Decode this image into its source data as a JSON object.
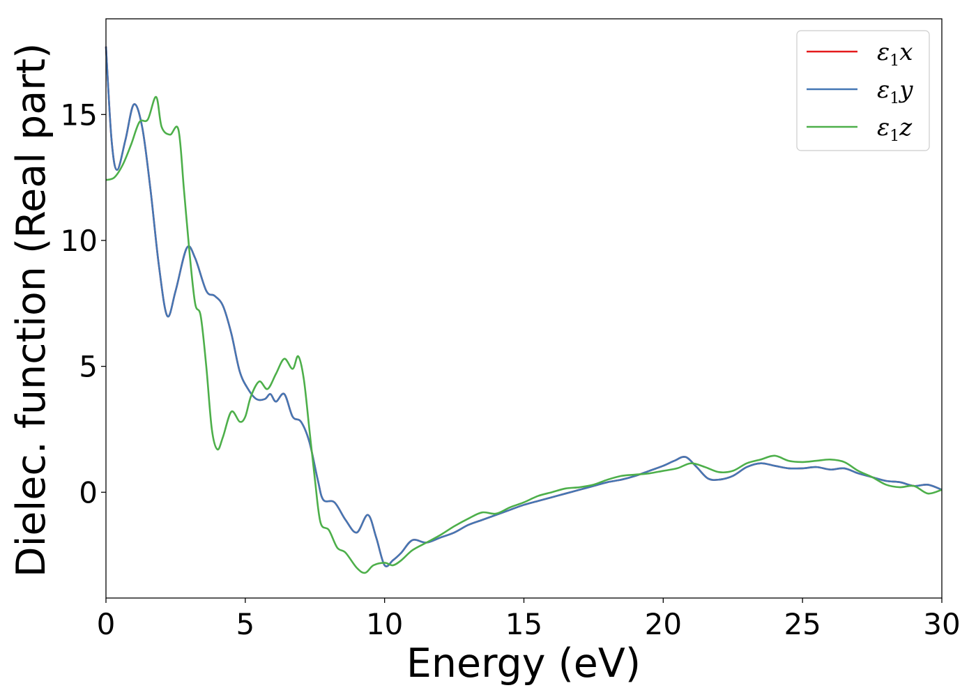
{
  "chart_data": {
    "type": "line",
    "xlabel": "Energy (eV)",
    "ylabel": "Dielec. function (Real part)",
    "xlim": [
      0,
      30
    ],
    "ylim": [
      -4.2,
      18.8
    ],
    "xticks": [
      0,
      5,
      10,
      15,
      20,
      25,
      30
    ],
    "yticks": [
      0,
      5,
      10,
      15
    ],
    "grid": false,
    "legend_position": "top-right",
    "series": [
      {
        "name": "ε1x",
        "legend": {
          "base": "ε",
          "sub": "1",
          "var": "x"
        },
        "color": "#e41a1c",
        "hidden_under": "ε1y",
        "points": [
          [
            0,
            17.7
          ],
          [
            0.2,
            14.0
          ],
          [
            0.4,
            12.8
          ],
          [
            0.7,
            14.0
          ],
          [
            1.0,
            15.4
          ],
          [
            1.3,
            14.5
          ],
          [
            1.6,
            12.0
          ],
          [
            1.9,
            9.0
          ],
          [
            2.2,
            7.0
          ],
          [
            2.5,
            8.0
          ],
          [
            2.9,
            9.7
          ],
          [
            3.2,
            9.3
          ],
          [
            3.6,
            8.0
          ],
          [
            3.9,
            7.8
          ],
          [
            4.2,
            7.4
          ],
          [
            4.5,
            6.3
          ],
          [
            4.8,
            4.8
          ],
          [
            5.1,
            4.1
          ],
          [
            5.4,
            3.7
          ],
          [
            5.7,
            3.7
          ],
          [
            5.9,
            3.9
          ],
          [
            6.1,
            3.6
          ],
          [
            6.4,
            3.9
          ],
          [
            6.7,
            3.0
          ],
          [
            7.0,
            2.8
          ],
          [
            7.3,
            2.0
          ],
          [
            7.6,
            0.5
          ],
          [
            7.8,
            -0.3
          ],
          [
            8.2,
            -0.4
          ],
          [
            8.6,
            -1.1
          ],
          [
            9.0,
            -1.6
          ],
          [
            9.4,
            -0.9
          ],
          [
            9.7,
            -1.8
          ],
          [
            10.0,
            -2.9
          ],
          [
            10.3,
            -2.7
          ],
          [
            10.6,
            -2.4
          ],
          [
            11.0,
            -1.9
          ],
          [
            11.5,
            -2.0
          ],
          [
            12.0,
            -1.8
          ],
          [
            12.5,
            -1.6
          ],
          [
            13.0,
            -1.3
          ],
          [
            13.5,
            -1.1
          ],
          [
            14.0,
            -0.9
          ],
          [
            14.5,
            -0.7
          ],
          [
            15.0,
            -0.5
          ],
          [
            15.5,
            -0.35
          ],
          [
            16.0,
            -0.2
          ],
          [
            16.5,
            -0.05
          ],
          [
            17.0,
            0.1
          ],
          [
            17.5,
            0.25
          ],
          [
            18.0,
            0.4
          ],
          [
            18.5,
            0.5
          ],
          [
            19.0,
            0.65
          ],
          [
            19.5,
            0.85
          ],
          [
            20.0,
            1.05
          ],
          [
            20.4,
            1.25
          ],
          [
            20.8,
            1.4
          ],
          [
            21.2,
            1.0
          ],
          [
            21.6,
            0.55
          ],
          [
            22.0,
            0.5
          ],
          [
            22.5,
            0.65
          ],
          [
            23.0,
            1.0
          ],
          [
            23.5,
            1.15
          ],
          [
            24.0,
            1.05
          ],
          [
            24.5,
            0.95
          ],
          [
            25.0,
            0.95
          ],
          [
            25.5,
            1.0
          ],
          [
            26.0,
            0.9
          ],
          [
            26.5,
            0.95
          ],
          [
            27.0,
            0.75
          ],
          [
            27.5,
            0.6
          ],
          [
            28.0,
            0.45
          ],
          [
            28.5,
            0.4
          ],
          [
            29.0,
            0.25
          ],
          [
            29.5,
            0.3
          ],
          [
            30.0,
            0.1
          ]
        ]
      },
      {
        "name": "ε1y",
        "legend": {
          "base": "ε",
          "sub": "1",
          "var": "y"
        },
        "color": "#4477b4",
        "points": [
          [
            0,
            17.7
          ],
          [
            0.2,
            14.0
          ],
          [
            0.4,
            12.8
          ],
          [
            0.7,
            14.0
          ],
          [
            1.0,
            15.4
          ],
          [
            1.3,
            14.5
          ],
          [
            1.6,
            12.0
          ],
          [
            1.9,
            9.0
          ],
          [
            2.2,
            7.0
          ],
          [
            2.5,
            8.0
          ],
          [
            2.9,
            9.7
          ],
          [
            3.2,
            9.3
          ],
          [
            3.6,
            8.0
          ],
          [
            3.9,
            7.8
          ],
          [
            4.2,
            7.4
          ],
          [
            4.5,
            6.3
          ],
          [
            4.8,
            4.8
          ],
          [
            5.1,
            4.1
          ],
          [
            5.4,
            3.7
          ],
          [
            5.7,
            3.7
          ],
          [
            5.9,
            3.9
          ],
          [
            6.1,
            3.6
          ],
          [
            6.4,
            3.9
          ],
          [
            6.7,
            3.0
          ],
          [
            7.0,
            2.8
          ],
          [
            7.3,
            2.0
          ],
          [
            7.6,
            0.5
          ],
          [
            7.8,
            -0.3
          ],
          [
            8.2,
            -0.4
          ],
          [
            8.6,
            -1.1
          ],
          [
            9.0,
            -1.6
          ],
          [
            9.4,
            -0.9
          ],
          [
            9.7,
            -1.8
          ],
          [
            10.0,
            -2.9
          ],
          [
            10.3,
            -2.7
          ],
          [
            10.6,
            -2.4
          ],
          [
            11.0,
            -1.9
          ],
          [
            11.5,
            -2.0
          ],
          [
            12.0,
            -1.8
          ],
          [
            12.5,
            -1.6
          ],
          [
            13.0,
            -1.3
          ],
          [
            13.5,
            -1.1
          ],
          [
            14.0,
            -0.9
          ],
          [
            14.5,
            -0.7
          ],
          [
            15.0,
            -0.5
          ],
          [
            15.5,
            -0.35
          ],
          [
            16.0,
            -0.2
          ],
          [
            16.5,
            -0.05
          ],
          [
            17.0,
            0.1
          ],
          [
            17.5,
            0.25
          ],
          [
            18.0,
            0.4
          ],
          [
            18.5,
            0.5
          ],
          [
            19.0,
            0.65
          ],
          [
            19.5,
            0.85
          ],
          [
            20.0,
            1.05
          ],
          [
            20.4,
            1.25
          ],
          [
            20.8,
            1.4
          ],
          [
            21.2,
            1.0
          ],
          [
            21.6,
            0.55
          ],
          [
            22.0,
            0.5
          ],
          [
            22.5,
            0.65
          ],
          [
            23.0,
            1.0
          ],
          [
            23.5,
            1.15
          ],
          [
            24.0,
            1.05
          ],
          [
            24.5,
            0.95
          ],
          [
            25.0,
            0.95
          ],
          [
            25.5,
            1.0
          ],
          [
            26.0,
            0.9
          ],
          [
            26.5,
            0.95
          ],
          [
            27.0,
            0.75
          ],
          [
            27.5,
            0.6
          ],
          [
            28.0,
            0.45
          ],
          [
            28.5,
            0.4
          ],
          [
            29.0,
            0.25
          ],
          [
            29.5,
            0.3
          ],
          [
            30.0,
            0.1
          ]
        ]
      },
      {
        "name": "ε1z",
        "legend": {
          "base": "ε",
          "sub": "1",
          "var": "z"
        },
        "color": "#4daf4a",
        "points": [
          [
            0,
            12.4
          ],
          [
            0.3,
            12.5
          ],
          [
            0.6,
            13.0
          ],
          [
            0.9,
            13.8
          ],
          [
            1.2,
            14.7
          ],
          [
            1.5,
            14.8
          ],
          [
            1.8,
            15.7
          ],
          [
            2.0,
            14.5
          ],
          [
            2.3,
            14.2
          ],
          [
            2.6,
            14.4
          ],
          [
            2.8,
            12.0
          ],
          [
            3.0,
            9.5
          ],
          [
            3.2,
            7.5
          ],
          [
            3.4,
            7.0
          ],
          [
            3.6,
            5.0
          ],
          [
            3.8,
            2.5
          ],
          [
            4.0,
            1.7
          ],
          [
            4.2,
            2.2
          ],
          [
            4.5,
            3.2
          ],
          [
            4.8,
            2.8
          ],
          [
            5.0,
            3.0
          ],
          [
            5.2,
            3.8
          ],
          [
            5.5,
            4.4
          ],
          [
            5.8,
            4.1
          ],
          [
            6.1,
            4.7
          ],
          [
            6.4,
            5.3
          ],
          [
            6.7,
            4.9
          ],
          [
            6.9,
            5.4
          ],
          [
            7.1,
            4.5
          ],
          [
            7.3,
            2.5
          ],
          [
            7.5,
            0.5
          ],
          [
            7.7,
            -1.2
          ],
          [
            8.0,
            -1.5
          ],
          [
            8.3,
            -2.2
          ],
          [
            8.6,
            -2.4
          ],
          [
            9.0,
            -3.0
          ],
          [
            9.3,
            -3.2
          ],
          [
            9.6,
            -2.9
          ],
          [
            10.0,
            -2.8
          ],
          [
            10.3,
            -2.9
          ],
          [
            10.6,
            -2.7
          ],
          [
            11.0,
            -2.3
          ],
          [
            11.5,
            -2.0
          ],
          [
            12.0,
            -1.7
          ],
          [
            12.5,
            -1.35
          ],
          [
            13.0,
            -1.05
          ],
          [
            13.5,
            -0.8
          ],
          [
            14.0,
            -0.85
          ],
          [
            14.5,
            -0.6
          ],
          [
            15.0,
            -0.4
          ],
          [
            15.5,
            -0.15
          ],
          [
            16.0,
            0.0
          ],
          [
            16.5,
            0.15
          ],
          [
            17.0,
            0.2
          ],
          [
            17.5,
            0.3
          ],
          [
            18.0,
            0.5
          ],
          [
            18.5,
            0.65
          ],
          [
            19.0,
            0.7
          ],
          [
            19.5,
            0.75
          ],
          [
            20.0,
            0.85
          ],
          [
            20.5,
            0.95
          ],
          [
            21.0,
            1.15
          ],
          [
            21.5,
            1.0
          ],
          [
            22.0,
            0.8
          ],
          [
            22.5,
            0.85
          ],
          [
            23.0,
            1.15
          ],
          [
            23.5,
            1.3
          ],
          [
            24.0,
            1.45
          ],
          [
            24.5,
            1.25
          ],
          [
            25.0,
            1.2
          ],
          [
            25.5,
            1.25
          ],
          [
            26.0,
            1.3
          ],
          [
            26.5,
            1.2
          ],
          [
            27.0,
            0.85
          ],
          [
            27.5,
            0.6
          ],
          [
            28.0,
            0.3
          ],
          [
            28.5,
            0.2
          ],
          [
            29.0,
            0.25
          ],
          [
            29.5,
            -0.05
          ],
          [
            30.0,
            0.1
          ]
        ]
      }
    ]
  }
}
